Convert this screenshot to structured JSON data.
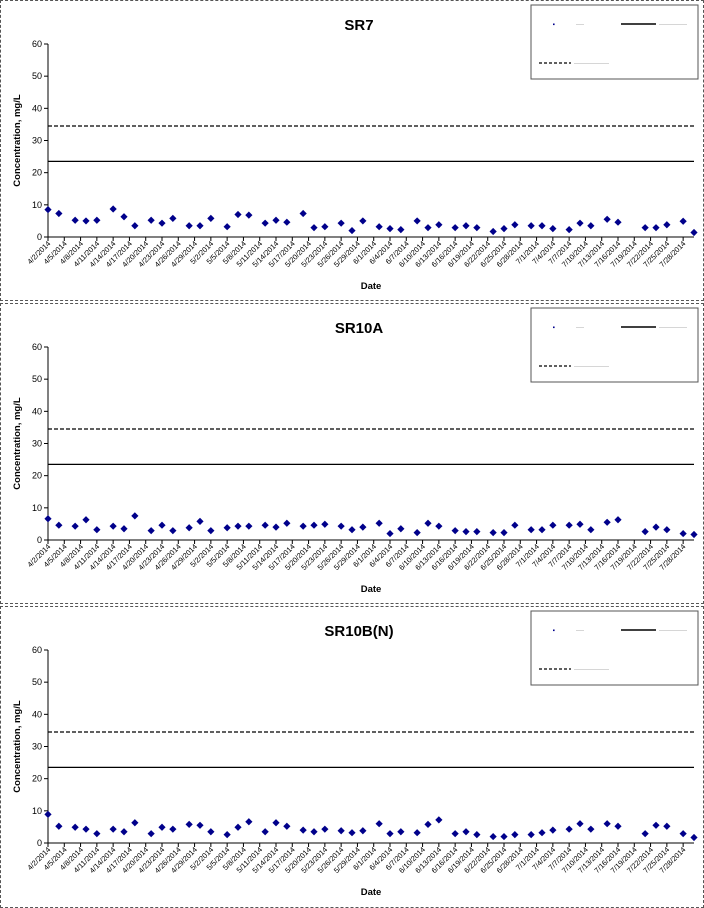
{
  "colors": {
    "marker": "#00008B",
    "line": "#000000",
    "legend_border": "#555555"
  },
  "dates": [
    "4/2/2014",
    "4/5/2014",
    "4/8/2014",
    "4/11/2014",
    "4/14/2014",
    "4/17/2014",
    "4/20/2014",
    "4/23/2014",
    "4/26/2014",
    "4/29/2014",
    "5/2/2014",
    "5/5/2014",
    "5/8/2014",
    "5/11/2014",
    "5/14/2014",
    "5/17/2014",
    "5/20/2014",
    "5/23/2014",
    "5/26/2014",
    "5/29/2014",
    "6/1/2014",
    "6/4/2014",
    "6/7/2014",
    "6/10/2014",
    "6/13/2014",
    "6/16/2014",
    "6/19/2014",
    "6/22/2014",
    "6/25/2014",
    "6/28/2014",
    "7/1/2014",
    "7/4/2014",
    "7/7/2014",
    "7/10/2014",
    "7/13/2014",
    "7/16/2014",
    "7/19/2014",
    "7/22/2014",
    "7/25/2014",
    "7/28/2014"
  ],
  "chart_data": [
    {
      "type": "scatter",
      "title": "SR7",
      "xlabel": "Date",
      "ylabel": "Concentration, mg/L",
      "ylim": [
        0,
        60
      ],
      "yticks": [
        0,
        10,
        20,
        30,
        40,
        50,
        60
      ],
      "x_range": [
        "4/2/2014",
        "7/30/2014"
      ],
      "grid": false,
      "legend_position": "top-right",
      "reference_lines": [
        {
          "style": "solid",
          "value": 23.5
        },
        {
          "style": "dashed",
          "value": 34.5
        }
      ],
      "series": [
        {
          "marker": "diamond",
          "points": [
            [
              "4/2/2014",
              8.5
            ],
            [
              "4/4/2014",
              7.3
            ],
            [
              "4/7/2014",
              5.2
            ],
            [
              "4/9/2014",
              5.0
            ],
            [
              "4/11/2014",
              5.2
            ],
            [
              "4/14/2014",
              8.7
            ],
            [
              "4/16/2014",
              6.3
            ],
            [
              "4/18/2014",
              3.5
            ],
            [
              "4/21/2014",
              5.2
            ],
            [
              "4/23/2014",
              4.3
            ],
            [
              "4/25/2014",
              5.8
            ],
            [
              "4/28/2014",
              3.5
            ],
            [
              "4/30/2014",
              3.5
            ],
            [
              "5/2/2014",
              5.8
            ],
            [
              "5/5/2014",
              3.2
            ],
            [
              "5/7/2014",
              7.0
            ],
            [
              "5/9/2014",
              6.8
            ],
            [
              "5/12/2014",
              4.3
            ],
            [
              "5/14/2014",
              5.2
            ],
            [
              "5/16/2014",
              4.6
            ],
            [
              "5/19/2014",
              7.3
            ],
            [
              "5/21/2014",
              2.9
            ],
            [
              "5/23/2014",
              3.2
            ],
            [
              "5/26/2014",
              4.3
            ],
            [
              "5/28/2014",
              2.0
            ],
            [
              "5/30/2014",
              5.0
            ],
            [
              "6/2/2014",
              3.2
            ],
            [
              "6/4/2014",
              2.6
            ],
            [
              "6/6/2014",
              2.3
            ],
            [
              "6/9/2014",
              5.0
            ],
            [
              "6/11/2014",
              2.9
            ],
            [
              "6/13/2014",
              3.8
            ],
            [
              "6/16/2014",
              2.9
            ],
            [
              "6/18/2014",
              3.5
            ],
            [
              "6/20/2014",
              2.9
            ],
            [
              "6/23/2014",
              1.7
            ],
            [
              "6/25/2014",
              2.6
            ],
            [
              "6/27/2014",
              3.8
            ],
            [
              "6/30/2014",
              3.5
            ],
            [
              "7/2/2014",
              3.5
            ],
            [
              "7/4/2014",
              2.6
            ],
            [
              "7/7/2014",
              2.3
            ],
            [
              "7/9/2014",
              4.3
            ],
            [
              "7/11/2014",
              3.5
            ],
            [
              "7/14/2014",
              5.5
            ],
            [
              "7/16/2014",
              4.6
            ],
            [
              "7/21/2014",
              2.9
            ],
            [
              "7/23/2014",
              2.9
            ],
            [
              "7/25/2014",
              3.8
            ],
            [
              "7/28/2014",
              4.9
            ],
            [
              "7/30/2014",
              1.4
            ]
          ]
        }
      ]
    },
    {
      "type": "scatter",
      "title": "SR10A",
      "xlabel": "Date",
      "ylabel": "Concentration, mg/L",
      "ylim": [
        0,
        60
      ],
      "yticks": [
        0,
        10,
        20,
        30,
        40,
        50,
        60
      ],
      "x_range": [
        "4/2/2014",
        "7/30/2014"
      ],
      "grid": false,
      "legend_position": "top-right",
      "reference_lines": [
        {
          "style": "solid",
          "value": 23.5
        },
        {
          "style": "dashed",
          "value": 34.5
        }
      ],
      "series": [
        {
          "marker": "diamond",
          "points": [
            [
              "4/2/2014",
              6.6
            ],
            [
              "4/4/2014",
              4.6
            ],
            [
              "4/7/2014",
              4.3
            ],
            [
              "4/9/2014",
              6.3
            ],
            [
              "4/11/2014",
              3.2
            ],
            [
              "4/14/2014",
              4.3
            ],
            [
              "4/16/2014",
              3.5
            ],
            [
              "4/18/2014",
              7.5
            ],
            [
              "4/21/2014",
              2.9
            ],
            [
              "4/23/2014",
              4.6
            ],
            [
              "4/25/2014",
              2.9
            ],
            [
              "4/28/2014",
              3.8
            ],
            [
              "4/30/2014",
              5.8
            ],
            [
              "5/2/2014",
              2.9
            ],
            [
              "5/5/2014",
              3.8
            ],
            [
              "5/7/2014",
              4.3
            ],
            [
              "5/9/2014",
              4.3
            ],
            [
              "5/12/2014",
              4.6
            ],
            [
              "5/14/2014",
              4.0
            ],
            [
              "5/16/2014",
              5.2
            ],
            [
              "5/19/2014",
              4.3
            ],
            [
              "5/21/2014",
              4.6
            ],
            [
              "5/23/2014",
              4.9
            ],
            [
              "5/26/2014",
              4.3
            ],
            [
              "5/28/2014",
              3.2
            ],
            [
              "5/30/2014",
              4.0
            ],
            [
              "6/2/2014",
              5.2
            ],
            [
              "6/4/2014",
              2.0
            ],
            [
              "6/6/2014",
              3.5
            ],
            [
              "6/9/2014",
              2.3
            ],
            [
              "6/11/2014",
              5.2
            ],
            [
              "6/13/2014",
              4.3
            ],
            [
              "6/16/2014",
              2.9
            ],
            [
              "6/18/2014",
              2.6
            ],
            [
              "6/20/2014",
              2.6
            ],
            [
              "6/23/2014",
              2.3
            ],
            [
              "6/25/2014",
              2.3
            ],
            [
              "6/27/2014",
              4.6
            ],
            [
              "6/30/2014",
              3.2
            ],
            [
              "7/2/2014",
              3.2
            ],
            [
              "7/4/2014",
              4.6
            ],
            [
              "7/7/2014",
              4.6
            ],
            [
              "7/9/2014",
              4.9
            ],
            [
              "7/11/2014",
              3.2
            ],
            [
              "7/14/2014",
              5.5
            ],
            [
              "7/16/2014",
              6.3
            ],
            [
              "7/21/2014",
              2.6
            ],
            [
              "7/23/2014",
              4.0
            ],
            [
              "7/25/2014",
              3.2
            ],
            [
              "7/28/2014",
              2.0
            ],
            [
              "7/30/2014",
              1.7
            ]
          ]
        }
      ]
    },
    {
      "type": "scatter",
      "title": "SR10B(N)",
      "xlabel": "Date",
      "ylabel": "Concentration, mg/L",
      "ylim": [
        0,
        60
      ],
      "yticks": [
        0,
        10,
        20,
        30,
        40,
        50,
        60
      ],
      "x_range": [
        "4/2/2014",
        "7/30/2014"
      ],
      "grid": false,
      "legend_position": "top-right",
      "reference_lines": [
        {
          "style": "solid",
          "value": 23.5
        },
        {
          "style": "dashed",
          "value": 34.5
        }
      ],
      "series": [
        {
          "marker": "diamond",
          "points": [
            [
              "4/2/2014",
              8.9
            ],
            [
              "4/4/2014",
              5.2
            ],
            [
              "4/7/2014",
              4.9
            ],
            [
              "4/9/2014",
              4.3
            ],
            [
              "4/11/2014",
              2.9
            ],
            [
              "4/14/2014",
              4.3
            ],
            [
              "4/16/2014",
              3.5
            ],
            [
              "4/18/2014",
              6.3
            ],
            [
              "4/21/2014",
              2.9
            ],
            [
              "4/23/2014",
              4.9
            ],
            [
              "4/25/2014",
              4.3
            ],
            [
              "4/28/2014",
              5.8
            ],
            [
              "4/30/2014",
              5.5
            ],
            [
              "5/2/2014",
              3.5
            ],
            [
              "5/5/2014",
              2.6
            ],
            [
              "5/7/2014",
              4.9
            ],
            [
              "5/9/2014",
              6.6
            ],
            [
              "5/12/2014",
              3.5
            ],
            [
              "5/14/2014",
              6.3
            ],
            [
              "5/16/2014",
              5.2
            ],
            [
              "5/19/2014",
              4.0
            ],
            [
              "5/21/2014",
              3.5
            ],
            [
              "5/23/2014",
              4.3
            ],
            [
              "5/26/2014",
              3.8
            ],
            [
              "5/28/2014",
              3.2
            ],
            [
              "5/30/2014",
              3.8
            ],
            [
              "6/2/2014",
              6.0
            ],
            [
              "6/4/2014",
              2.9
            ],
            [
              "6/6/2014",
              3.5
            ],
            [
              "6/9/2014",
              3.2
            ],
            [
              "6/11/2014",
              5.8
            ],
            [
              "6/13/2014",
              7.2
            ],
            [
              "6/16/2014",
              2.9
            ],
            [
              "6/18/2014",
              3.5
            ],
            [
              "6/20/2014",
              2.6
            ],
            [
              "6/23/2014",
              2.0
            ],
            [
              "6/25/2014",
              2.0
            ],
            [
              "6/27/2014",
              2.6
            ],
            [
              "6/30/2014",
              2.6
            ],
            [
              "7/2/2014",
              3.2
            ],
            [
              "7/4/2014",
              4.0
            ],
            [
              "7/7/2014",
              4.3
            ],
            [
              "7/9/2014",
              6.0
            ],
            [
              "7/11/2014",
              4.3
            ],
            [
              "7/14/2014",
              6.0
            ],
            [
              "7/16/2014",
              5.2
            ],
            [
              "7/21/2014",
              2.9
            ],
            [
              "7/23/2014",
              5.5
            ],
            [
              "7/25/2014",
              5.2
            ],
            [
              "7/28/2014",
              2.9
            ],
            [
              "7/30/2014",
              1.7
            ]
          ]
        }
      ]
    }
  ]
}
